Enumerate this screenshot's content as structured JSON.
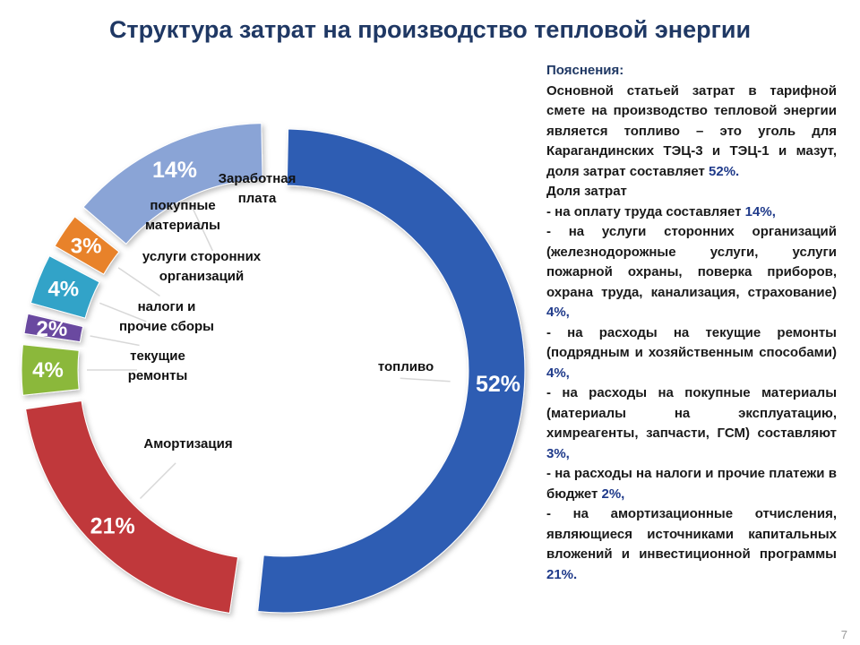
{
  "title": "Структура затрат на производство тепловой энергии",
  "page_number": "7",
  "colors": {
    "title": "#1f3864",
    "fuel": "#2e5db3",
    "depreciation": "#c0393b",
    "repairs": "#8bb83a",
    "taxes": "#6a4aa0",
    "services": "#31a3c8",
    "materials": "#e8822a",
    "salary": "#8aa4d6"
  },
  "chart_data": {
    "type": "pie",
    "title": "Структура затрат на производство тепловой энергии",
    "slices": [
      {
        "category": "топливо",
        "value": 52,
        "label": "52%",
        "color": "#2e5db3"
      },
      {
        "category": "Амортизация",
        "value": 21,
        "label": "21%",
        "color": "#c0393b"
      },
      {
        "category": "текущие ремонты",
        "value": 4,
        "label": "4%",
        "color": "#8bb83a"
      },
      {
        "category": "налоги и прочие сборы",
        "value": 2,
        "label": "2%",
        "color": "#6a4aa0"
      },
      {
        "category": "услуги сторонних организаций",
        "value": 4,
        "label": "4%",
        "color": "#31a3c8"
      },
      {
        "category": "покупные материалы",
        "value": 3,
        "label": "3%",
        "color": "#e8822a"
      },
      {
        "category": "Заработная плата",
        "value": 14,
        "label": "14%",
        "color": "#8aa4d6"
      }
    ]
  },
  "category_labels": {
    "salary_1": "Заработная",
    "salary_2": "плата",
    "materials_1": "покупные",
    "materials_2": "материалы",
    "services_1": "услуги сторонних",
    "services_2": "организаций",
    "taxes_1": "налоги и",
    "taxes_2": "прочие сборы",
    "repairs_1": "текущие",
    "repairs_2": "ремонты",
    "depreciation": "Амортизация",
    "fuel": "топливо"
  },
  "notes": {
    "heading": "Пояснения:",
    "intro": "Основной статьей затрат в тарифной смете на производство тепловой энергии является топливо – это уголь для Карагандинских ТЭЦ-3 и ТЭЦ-1 и мазут, доля затрат составляет",
    "intro_value": "52%.",
    "shares_heading": "Доля затрат",
    "salary_text": "- на оплату труда составляет",
    "salary_value": "14%,",
    "services_text": "- на услуги сторонних организаций (железнодорожные услуги, услуги пожарной охраны, поверка приборов, охрана труда, канализация, страхование)",
    "services_value": "4%,",
    "repairs_text": "- на расходы на текущие ремонты (подрядным и хозяйственным способами)",
    "repairs_value": "4%,",
    "materials_text": "- на расходы на покупные материалы (материалы на эксплуатацию, химреагенты, запчасти, ГСМ) составляют",
    "materials_value": "3%,",
    "taxes_text": "- на расходы на налоги и прочие платежи в бюджет",
    "taxes_value": "2%,",
    "depreciation_text": "- на амортизационные отчисления, являющиеся источниками капитальных вложений и инвестиционной программы",
    "depreciation_value": "21%."
  }
}
